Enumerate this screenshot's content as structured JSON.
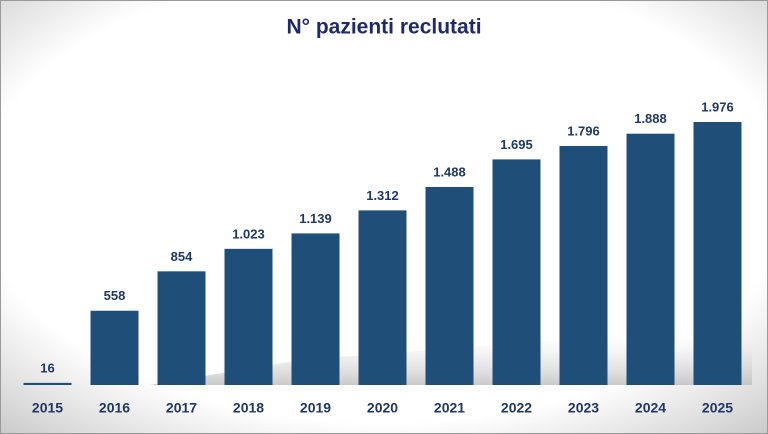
{
  "chart_data": {
    "type": "bar",
    "title": "N° pazienti reclutati",
    "categories": [
      "2015",
      "2016",
      "2017",
      "2018",
      "2019",
      "2020",
      "2021",
      "2022",
      "2023",
      "2024",
      "2025"
    ],
    "values": [
      16,
      558,
      854,
      1023,
      1139,
      1312,
      1488,
      1695,
      1796,
      1888,
      1976
    ],
    "value_labels": [
      "16",
      "558",
      "854",
      "1.023",
      "1.139",
      "1.312",
      "1.488",
      "1.695",
      "1.796",
      "1.888",
      "1.976"
    ],
    "color": "#1f4e79"
  }
}
